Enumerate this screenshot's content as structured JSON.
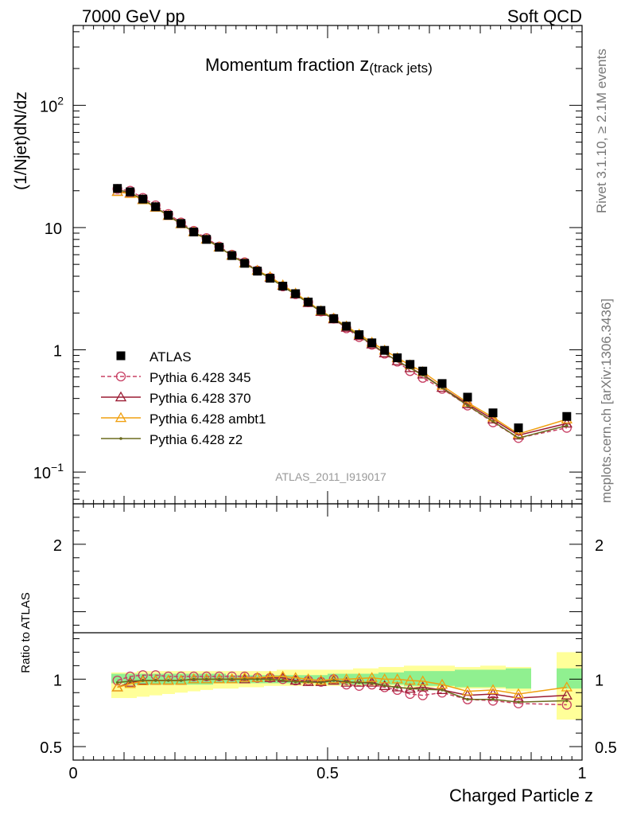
{
  "header": {
    "left": "7000 GeV pp",
    "right": "Soft QCD"
  },
  "side_labels": {
    "rivet": "Rivet 3.1.10, ≥ 2.1M events",
    "mcplots": "mcplots.cern.ch [arXiv:1306.3436]"
  },
  "chart_data": [
    {
      "type": "line",
      "title_main": "Momentum fraction ",
      "title_var": "z",
      "title_sub": "(track jets)",
      "ylabel": "(1/Njet)dN/dz",
      "watermark": "ATLAS_2011_I919017",
      "yscale": "log",
      "xlim": [
        0,
        1
      ],
      "ylim": [
        0.055,
        450
      ],
      "y_ticks": [
        {
          "value": 0.1,
          "base": "10",
          "exp": "−1"
        },
        {
          "value": 1,
          "base": "1",
          "exp": ""
        },
        {
          "value": 10,
          "base": "10",
          "exp": ""
        },
        {
          "value": 100,
          "base": "10",
          "exp": "2"
        }
      ],
      "legend_position": "left-middle",
      "x": [
        0.087,
        0.112,
        0.137,
        0.162,
        0.187,
        0.212,
        0.237,
        0.262,
        0.287,
        0.312,
        0.337,
        0.362,
        0.387,
        0.412,
        0.437,
        0.462,
        0.487,
        0.512,
        0.537,
        0.562,
        0.587,
        0.612,
        0.637,
        0.662,
        0.687,
        0.725,
        0.775,
        0.825,
        0.875,
        0.97
      ],
      "data": {
        "name": "ATLAS",
        "values": [
          20.9,
          19.6,
          17.1,
          14.8,
          12.6,
          10.8,
          9.2,
          8.0,
          6.9,
          5.9,
          5.1,
          4.4,
          3.85,
          3.32,
          2.88,
          2.46,
          2.1,
          1.8,
          1.56,
          1.33,
          1.14,
          0.99,
          0.86,
          0.76,
          0.67,
          0.53,
          0.41,
          0.305,
          0.23,
          0.285
        ]
      },
      "series": [
        {
          "name": "Pythia 6.428 345",
          "color": "#c84064",
          "marker": "circle",
          "dash": true,
          "values": [
            20.7,
            20.0,
            17.5,
            15.2,
            12.9,
            11.0,
            9.4,
            8.2,
            7.0,
            6.0,
            5.2,
            4.45,
            3.9,
            3.3,
            2.85,
            2.45,
            2.06,
            1.8,
            1.5,
            1.27,
            1.1,
            0.93,
            0.8,
            0.67,
            0.59,
            0.48,
            0.35,
            0.255,
            0.19,
            0.23
          ]
        },
        {
          "name": "Pythia 6.428 370",
          "color": "#9b1c33",
          "marker": "triangle",
          "dash": false,
          "values": [
            19.7,
            19.1,
            16.9,
            14.6,
            12.5,
            10.7,
            9.2,
            8.0,
            6.9,
            5.9,
            5.1,
            4.45,
            3.9,
            3.35,
            2.85,
            2.42,
            2.05,
            1.78,
            1.52,
            1.3,
            1.11,
            0.94,
            0.81,
            0.71,
            0.63,
            0.49,
            0.36,
            0.27,
            0.2,
            0.25
          ]
        },
        {
          "name": "Pythia 6.428 ambt1",
          "color": "#f0a010",
          "marker": "triangle",
          "dash": false,
          "values": [
            19.6,
            18.9,
            16.8,
            14.6,
            12.5,
            10.7,
            9.2,
            8.0,
            6.9,
            5.9,
            5.1,
            4.45,
            3.95,
            3.38,
            2.9,
            2.46,
            2.08,
            1.81,
            1.56,
            1.34,
            1.15,
            0.99,
            0.86,
            0.75,
            0.66,
            0.51,
            0.37,
            0.28,
            0.205,
            0.27
          ]
        },
        {
          "name": "Pythia 6.428 z2",
          "color": "#6b6b1e",
          "marker": "dot",
          "dash": false,
          "values": [
            20.4,
            19.3,
            17.0,
            14.7,
            12.5,
            10.7,
            9.2,
            8.0,
            6.9,
            5.9,
            5.1,
            4.42,
            3.85,
            3.3,
            2.83,
            2.42,
            2.05,
            1.79,
            1.53,
            1.3,
            1.11,
            0.94,
            0.81,
            0.71,
            0.62,
            0.49,
            0.35,
            0.26,
            0.19,
            0.24
          ]
        }
      ]
    },
    {
      "type": "line",
      "ylabel": "Ratio to ATLAS",
      "xlabel": "Charged Particle z",
      "xlim": [
        0,
        1
      ],
      "ylim": [
        0.4,
        2.3
      ],
      "x_ticks": [
        {
          "value": 0,
          "label": "0"
        },
        {
          "value": 0.5,
          "label": "0.5"
        },
        {
          "value": 1,
          "label": "1"
        }
      ],
      "y_ticks": [
        {
          "value": 0.5,
          "label": "0.5"
        },
        {
          "value": 1,
          "label": "1"
        },
        {
          "value": 2,
          "label": "2"
        }
      ],
      "bands": {
        "x_edges": [
          0.075,
          0.1,
          0.125,
          0.15,
          0.175,
          0.2,
          0.225,
          0.25,
          0.275,
          0.3,
          0.325,
          0.35,
          0.375,
          0.4,
          0.425,
          0.45,
          0.475,
          0.5,
          0.525,
          0.55,
          0.575,
          0.6,
          0.625,
          0.65,
          0.675,
          0.7,
          0.75,
          0.8,
          0.85,
          0.9,
          0.95,
          1.0
        ],
        "green": [
          [
            0.97,
            1.04
          ],
          [
            0.96,
            1.04
          ],
          [
            0.96,
            1.04
          ],
          [
            0.96,
            1.04
          ],
          [
            0.96,
            1.04
          ],
          [
            0.96,
            1.04
          ],
          [
            0.96,
            1.04
          ],
          [
            0.96,
            1.04
          ],
          [
            0.97,
            1.04
          ],
          [
            0.97,
            1.03
          ],
          [
            0.97,
            1.03
          ],
          [
            0.97,
            1.03
          ],
          [
            0.97,
            1.03
          ],
          [
            0.97,
            1.03
          ],
          [
            0.97,
            1.03
          ],
          [
            0.97,
            1.03
          ],
          [
            0.97,
            1.03
          ],
          [
            0.96,
            1.04
          ],
          [
            0.96,
            1.04
          ],
          [
            0.96,
            1.04
          ],
          [
            0.96,
            1.04
          ],
          [
            0.96,
            1.05
          ],
          [
            0.96,
            1.05
          ],
          [
            0.95,
            1.06
          ],
          [
            0.95,
            1.06
          ],
          [
            0.95,
            1.06
          ],
          [
            0.94,
            1.07
          ],
          [
            0.94,
            1.07
          ],
          [
            0.93,
            1.08
          ],
          null,
          [
            0.93,
            1.08
          ]
        ],
        "yellow": [
          [
            0.86,
            1.05
          ],
          [
            0.86,
            1.05
          ],
          [
            0.87,
            1.06
          ],
          [
            0.88,
            1.06
          ],
          [
            0.89,
            1.06
          ],
          [
            0.9,
            1.06
          ],
          [
            0.91,
            1.06
          ],
          [
            0.92,
            1.06
          ],
          [
            0.93,
            1.06
          ],
          [
            0.93,
            1.06
          ],
          [
            0.94,
            1.06
          ],
          [
            0.94,
            1.06
          ],
          [
            0.95,
            1.06
          ],
          [
            0.95,
            1.07
          ],
          [
            0.95,
            1.07
          ],
          [
            0.95,
            1.07
          ],
          [
            0.95,
            1.07
          ],
          [
            0.95,
            1.07
          ],
          [
            0.95,
            1.07
          ],
          [
            0.95,
            1.08
          ],
          [
            0.95,
            1.08
          ],
          [
            0.95,
            1.09
          ],
          [
            0.95,
            1.09
          ],
          [
            0.94,
            1.1
          ],
          [
            0.94,
            1.1
          ],
          [
            0.94,
            1.1
          ],
          [
            0.93,
            1.09
          ],
          [
            0.93,
            1.1
          ],
          [
            0.91,
            1.09
          ],
          null,
          [
            0.7,
            1.2
          ]
        ]
      },
      "series": [
        {
          "name": "Pythia 6.428 345",
          "values": [
            0.99,
            1.02,
            1.03,
            1.03,
            1.02,
            1.02,
            1.02,
            1.02,
            1.02,
            1.02,
            1.02,
            1.01,
            1.01,
            1.0,
            0.99,
            0.99,
            0.98,
            1.0,
            0.96,
            0.95,
            0.96,
            0.94,
            0.92,
            0.89,
            0.88,
            0.9,
            0.85,
            0.84,
            0.82,
            0.81
          ]
        },
        {
          "name": "Pythia 6.428 370",
          "values": [
            0.94,
            0.975,
            0.99,
            0.99,
            0.99,
            0.99,
            1.0,
            1.0,
            1.0,
            1.0,
            1.0,
            1.01,
            1.01,
            1.01,
            0.99,
            0.98,
            0.98,
            0.99,
            0.975,
            0.975,
            0.975,
            0.95,
            0.94,
            0.93,
            0.94,
            0.92,
            0.88,
            0.89,
            0.86,
            0.88
          ]
        },
        {
          "name": "Pythia 6.428 ambt1",
          "values": [
            0.94,
            0.965,
            0.985,
            0.99,
            0.99,
            0.99,
            1.0,
            1.0,
            1.0,
            1.0,
            1.01,
            1.01,
            1.02,
            1.02,
            1.01,
            1.0,
            0.99,
            1.0,
            1.0,
            1.005,
            1.01,
            1.0,
            1.0,
            0.99,
            0.985,
            0.96,
            0.91,
            0.92,
            0.89,
            0.94
          ]
        },
        {
          "name": "Pythia 6.428 z2",
          "values": [
            0.975,
            0.985,
            0.99,
            0.99,
            0.99,
            0.99,
            1.0,
            1.0,
            1.0,
            1.0,
            1.0,
            1.0,
            1.0,
            0.99,
            0.98,
            0.98,
            0.975,
            0.99,
            0.98,
            0.975,
            0.97,
            0.95,
            0.94,
            0.93,
            0.925,
            0.92,
            0.85,
            0.85,
            0.83,
            0.84
          ]
        }
      ]
    }
  ]
}
